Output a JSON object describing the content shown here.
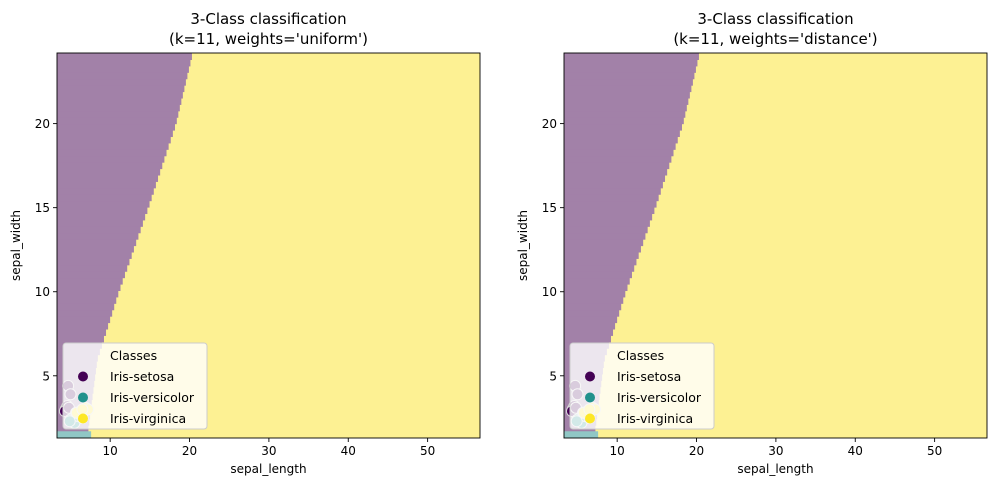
{
  "chart_data": [
    {
      "type": "heatmap",
      "title": "3-Class classification\n(k=11, weights='uniform')",
      "xlabel": "sepal_length",
      "ylabel": "sepal_width",
      "xlim": [
        3.3,
        56.6
      ],
      "ylim": [
        1.3,
        24.2
      ],
      "xticks": [
        10,
        20,
        30,
        40,
        50
      ],
      "yticks": [
        5,
        10,
        15,
        20
      ],
      "decision_regions": {
        "classes": [
          "Iris-setosa",
          "Iris-virginica"
        ],
        "boundary_x_at_y": [
          [
            1.3,
            7.1
          ],
          [
            6.0,
            8.4
          ],
          [
            10.0,
            11.1
          ],
          [
            15.0,
            14.8
          ],
          [
            20.0,
            18.3
          ],
          [
            24.2,
            20.4
          ]
        ],
        "left_class": "Iris-setosa",
        "right_class": "Iris-virginica",
        "extra_region": {
          "class": "Iris-versicolor",
          "x": [
            3.3,
            7.6
          ],
          "y": [
            1.3,
            1.7
          ]
        }
      },
      "scatter": [
        {
          "series": "Iris-setosa",
          "points": [
            [
              4.4,
              3.0
            ],
            [
              4.6,
              3.2
            ],
            [
              4.3,
              2.9
            ],
            [
              4.8,
              3.1
            ]
          ]
        },
        {
          "series": "Iris-versicolor",
          "points": [
            [
              5.0,
              2.4
            ],
            [
              5.5,
              2.2
            ],
            [
              6.0,
              2.6
            ],
            [
              5.7,
              2.8
            ],
            [
              6.5,
              2.5
            ],
            [
              4.9,
              2.3
            ]
          ]
        },
        {
          "series": "Iris-virginica",
          "points": [
            [
              6.3,
              2.9
            ],
            [
              6.9,
              3.1
            ],
            [
              5.8,
              2.8
            ],
            [
              7.2,
              3.0
            ],
            [
              6.5,
              3.0
            ]
          ]
        },
        {
          "series": "Iris-setosa",
          "points": [
            [
              4.7,
              4.4
            ],
            [
              5.0,
              3.9
            ]
          ]
        }
      ],
      "legend": {
        "title": "Classes",
        "entries": [
          "Iris-setosa",
          "Iris-versicolor",
          "Iris-virginica"
        ],
        "placement": "lower-left"
      }
    },
    {
      "type": "heatmap",
      "title": "3-Class classification\n(k=11, weights='distance')",
      "xlabel": "sepal_length",
      "ylabel": "sepal_width",
      "xlim": [
        3.3,
        56.6
      ],
      "ylim": [
        1.3,
        24.2
      ],
      "xticks": [
        10,
        20,
        30,
        40,
        50
      ],
      "yticks": [
        5,
        10,
        15,
        20
      ],
      "decision_regions": {
        "classes": [
          "Iris-setosa",
          "Iris-virginica"
        ],
        "boundary_x_at_y": [
          [
            1.3,
            7.1
          ],
          [
            6.0,
            8.4
          ],
          [
            10.0,
            11.1
          ],
          [
            15.0,
            14.8
          ],
          [
            20.0,
            18.3
          ],
          [
            24.2,
            20.4
          ]
        ],
        "left_class": "Iris-setosa",
        "right_class": "Iris-virginica",
        "extra_region": {
          "class": "Iris-versicolor",
          "x": [
            3.3,
            7.6
          ],
          "y": [
            1.3,
            1.7
          ]
        }
      },
      "scatter": [
        {
          "series": "Iris-setosa",
          "points": [
            [
              4.4,
              3.0
            ],
            [
              4.6,
              3.2
            ],
            [
              4.3,
              2.9
            ],
            [
              4.8,
              3.1
            ]
          ]
        },
        {
          "series": "Iris-versicolor",
          "points": [
            [
              5.0,
              2.4
            ],
            [
              5.5,
              2.2
            ],
            [
              6.0,
              2.6
            ],
            [
              5.7,
              2.8
            ],
            [
              6.5,
              2.5
            ],
            [
              4.9,
              2.3
            ]
          ]
        },
        {
          "series": "Iris-virginica",
          "points": [
            [
              6.3,
              2.9
            ],
            [
              6.9,
              3.1
            ],
            [
              5.8,
              2.8
            ],
            [
              7.2,
              3.0
            ],
            [
              6.5,
              3.0
            ]
          ]
        },
        {
          "series": "Iris-setosa",
          "points": [
            [
              4.7,
              4.4
            ],
            [
              5.0,
              3.9
            ]
          ]
        }
      ],
      "legend": {
        "title": "Classes",
        "entries": [
          "Iris-setosa",
          "Iris-versicolor",
          "Iris-virginica"
        ],
        "placement": "lower-left"
      }
    }
  ],
  "colors": {
    "Iris-setosa": "#440154",
    "Iris-versicolor": "#21918c",
    "Iris-virginica": "#fde725",
    "region_setosa": "#a281a8",
    "region_versicolor": "#90c7c5",
    "region_virginica": "#fdf193"
  }
}
